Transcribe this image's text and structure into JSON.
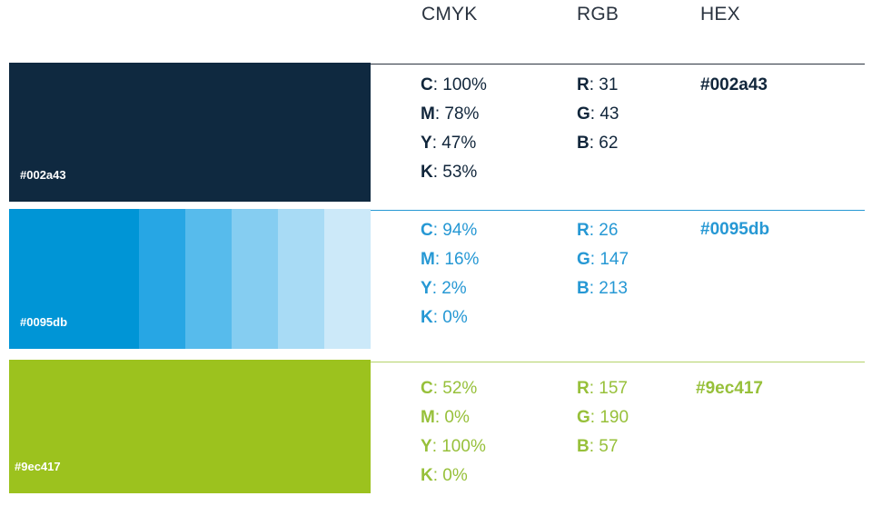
{
  "header": {
    "cmyk": "CMYK",
    "rgb": "RGB",
    "hex": "HEX"
  },
  "colors": [
    {
      "swatch_label": "#002a43",
      "swatch_color": "#0f2940",
      "text_color": "#11263b",
      "rule_color": "#2b3440",
      "tints": [],
      "cmyk": [
        {
          "k": "C",
          "v": ": 100%"
        },
        {
          "k": "M",
          "v": ": 78%"
        },
        {
          "k": "Y",
          "v": ": 47%"
        },
        {
          "k": "K",
          "v": ": 53%"
        }
      ],
      "rgb": [
        {
          "k": "R",
          "v": ": 31"
        },
        {
          "k": "G",
          "v": ": 43"
        },
        {
          "k": "B",
          "v": ": 62"
        }
      ],
      "hex": "#002a43"
    },
    {
      "swatch_label": "#0095db",
      "swatch_color": "#0095d6",
      "text_color": "#2698d4",
      "rule_color": "#2698d4",
      "tints": [
        "#27a6e4",
        "#57bbec",
        "#85cdf1",
        "#a8dbf5",
        "#cce9f9"
      ],
      "cmyk": [
        {
          "k": "C",
          "v": ": 94%"
        },
        {
          "k": "M",
          "v": ": 16%"
        },
        {
          "k": "Y",
          "v": ": 2%"
        },
        {
          "k": "K",
          "v": ": 0%"
        }
      ],
      "rgb": [
        {
          "k": "R",
          "v": ": 26"
        },
        {
          "k": "G",
          "v": ": 147"
        },
        {
          "k": "B",
          "v": ": 213"
        }
      ],
      "hex": "#0095db"
    },
    {
      "swatch_label": "#9ec417",
      "swatch_color": "#9cc21e",
      "text_color": "#97c03a",
      "rule_color": "#b5d36a",
      "tints": [],
      "cmyk": [
        {
          "k": "C",
          "v": ": 52%"
        },
        {
          "k": "M",
          "v": ": 0%"
        },
        {
          "k": "Y",
          "v": ": 100%"
        },
        {
          "k": "K",
          "v": ": 0%"
        }
      ],
      "rgb": [
        {
          "k": "R",
          "v": ": 157"
        },
        {
          "k": "G",
          "v": ": 190"
        },
        {
          "k": "B",
          "v": ": 57"
        }
      ],
      "hex": "#9ec417"
    }
  ]
}
